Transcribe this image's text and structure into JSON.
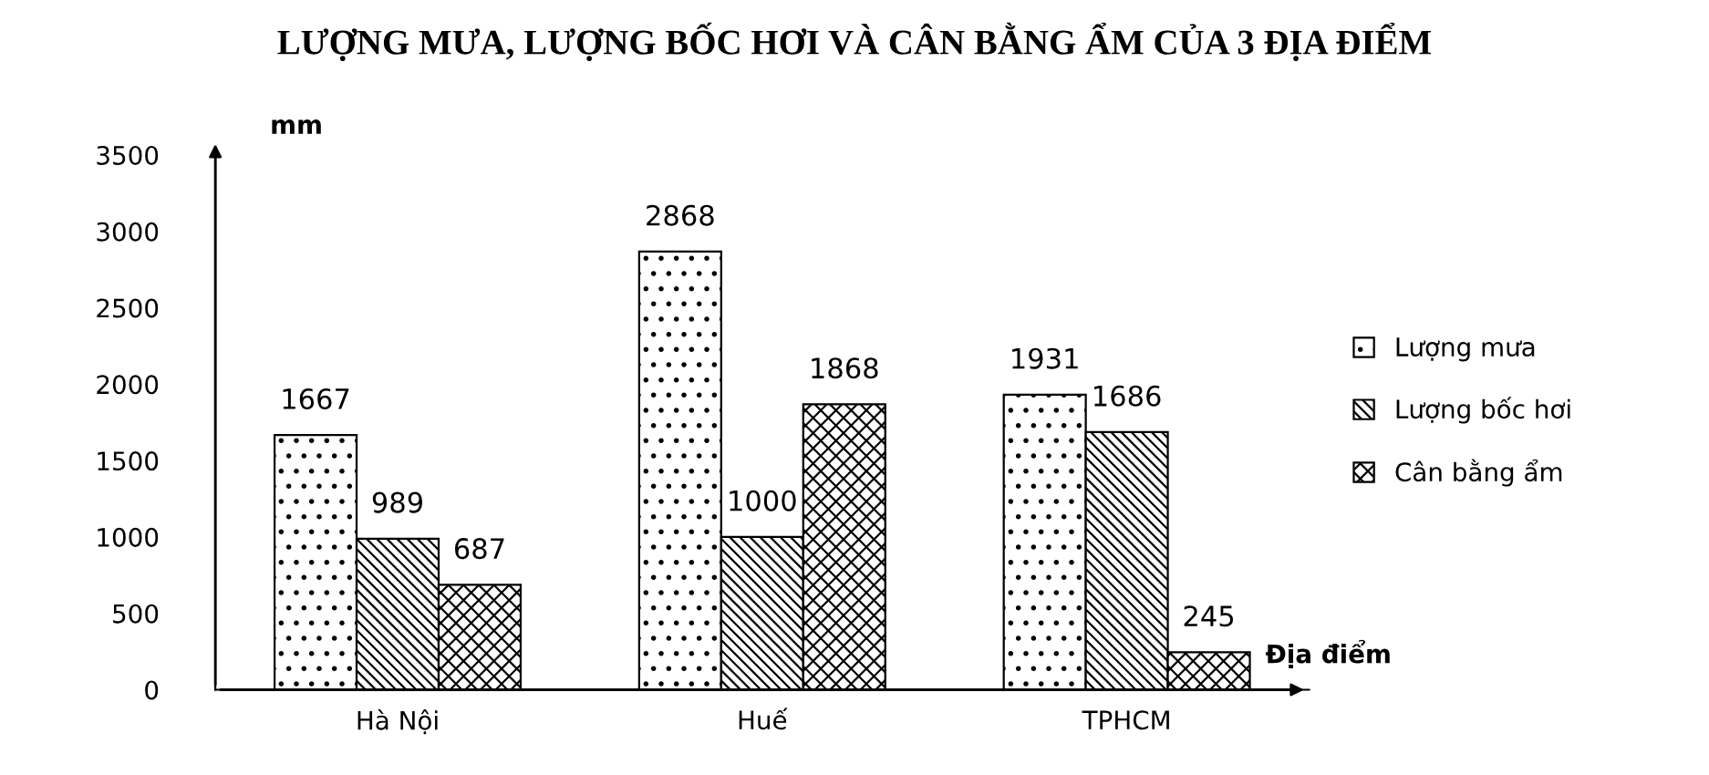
{
  "chart_data": {
    "type": "bar",
    "title": "LƯỢNG MƯA, LƯỢNG BỐC HƠI VÀ CÂN BẰNG ẨM CỦA 3 ĐỊA ĐIỂM",
    "xlabel": "Địa điểm",
    "ylabel": "mm",
    "categories": [
      "Hà Nội",
      "Huế",
      "TPHCM"
    ],
    "series": [
      {
        "name": "Lượng mưa",
        "color": "#000000",
        "values": [
          1667,
          2868,
          1931
        ]
      },
      {
        "name": "Lượng bốc hơi",
        "color": "#000000",
        "values": [
          989,
          1000,
          1686
        ]
      },
      {
        "name": "Cân bằng ẩm",
        "color": "#000000",
        "values": [
          687,
          1868,
          245
        ]
      }
    ],
    "ylim": [
      0,
      3500
    ],
    "yticks": [
      0,
      500,
      1000,
      1500,
      2000,
      2500,
      3000,
      3500
    ],
    "data_labels": true,
    "legend": "right",
    "grid": false
  }
}
